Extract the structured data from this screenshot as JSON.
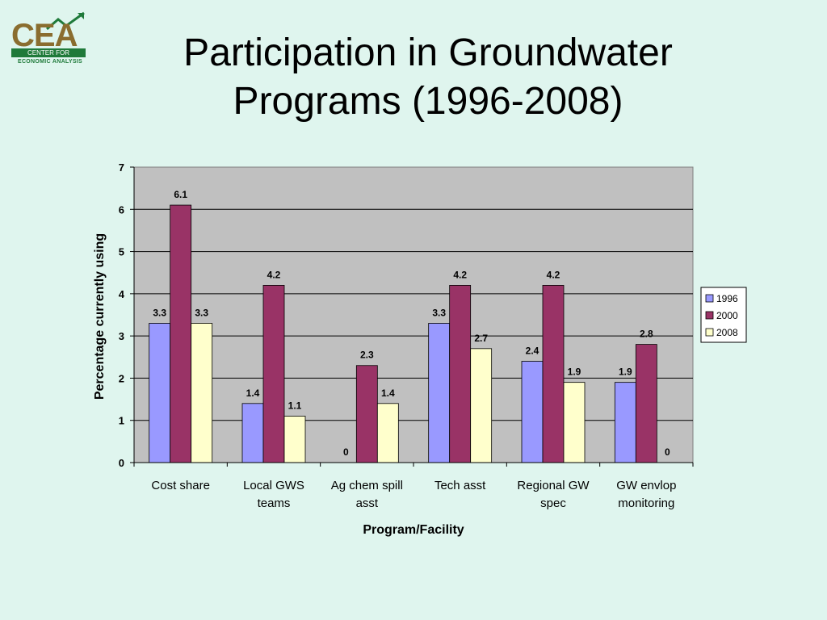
{
  "logo": {
    "mark": "CEA",
    "band": "CENTER FOR",
    "sub": "ECONOMIC ANALYSIS"
  },
  "slide": {
    "title": "Participation in Groundwater Programs (1996-2008)"
  },
  "colors": {
    "background": "#dff5ee",
    "plot_area": "#c0c0c0",
    "series_1996": "#9999ff",
    "series_2000": "#993366",
    "series_2008": "#ffffcc"
  },
  "chart_data": {
    "type": "bar",
    "title": "",
    "xlabel": "Program/Facility",
    "ylabel": "Percentage currently using",
    "ylim": [
      0,
      7
    ],
    "yticks": [
      0,
      1,
      2,
      3,
      4,
      5,
      6,
      7
    ],
    "categories": [
      [
        "Cost share"
      ],
      [
        "Local GWS",
        "teams"
      ],
      [
        "Ag chem spill",
        "asst"
      ],
      [
        "Tech asst"
      ],
      [
        "Regional GW",
        "spec"
      ],
      [
        "GW envlop",
        "monitoring"
      ]
    ],
    "series": [
      {
        "name": "1996",
        "color": "#9999ff",
        "values": [
          3.3,
          1.4,
          0,
          3.3,
          2.4,
          1.9
        ]
      },
      {
        "name": "2000",
        "color": "#993366",
        "values": [
          6.1,
          4.2,
          2.3,
          4.2,
          4.2,
          2.8
        ]
      },
      {
        "name": "2008",
        "color": "#ffffcc",
        "values": [
          3.3,
          1.1,
          1.4,
          2.7,
          1.9,
          0
        ]
      }
    ],
    "grid": true,
    "legend": "right"
  }
}
